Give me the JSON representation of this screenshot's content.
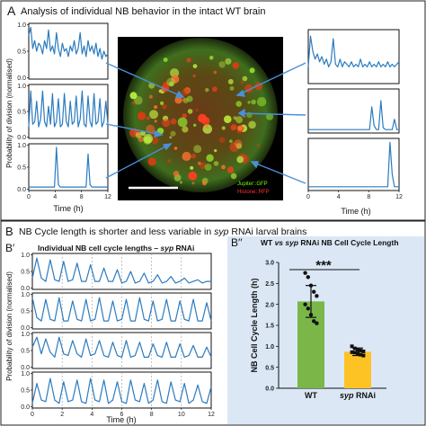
{
  "panel_a": {
    "letter": "A",
    "title": "Analysis of individual NB behavior in the intact WT brain",
    "ylabel": "Probability of division (normalised)",
    "xlabel_left": "Time (h)",
    "xlabel_right": "Time (h)",
    "yticks": [
      "1.0",
      "0.5",
      "0.0"
    ],
    "xticks": [
      "0",
      "4",
      "8",
      "12"
    ],
    "microscopy": {
      "label_jupiter": "Jupiter::GFP",
      "label_histone": "Histone::RFP",
      "jupiter_color": "#7CFC00",
      "histone_color": "#ff3030"
    }
  },
  "panel_b": {
    "letter": "B",
    "title": "NB Cycle length is shorter and less variable in syp RNAi larval brains",
    "title_parts": [
      "NB Cycle length is shorter and less variable in ",
      "syp",
      " RNAi larval brains"
    ]
  },
  "panel_b1": {
    "letter": "B′",
    "title_parts": [
      "Individual NB cell cycle lengths – ",
      "syp",
      " RNAi"
    ],
    "ylabel": "Probability of division (normalised)",
    "xlabel": "Time (h)",
    "yticks": [
      "1.0",
      "0.5",
      "0.0"
    ],
    "xticks": [
      "0",
      "2",
      "4",
      "6",
      "8",
      "10",
      "12"
    ]
  },
  "panel_b2": {
    "letter": "B′′",
    "title_parts": [
      "WT ",
      "vs syp",
      " RNAi NB Cell Cycle Length"
    ],
    "ylabel": "NB Cell Cycle Length (h)",
    "significance": "***",
    "yticks": [
      "0.0",
      "0.5",
      "1.0",
      "1.5",
      "2.0",
      "2.5",
      "3.0"
    ],
    "xlabels": [
      {
        "a": "WT",
        "b": ""
      },
      {
        "a": "syp",
        "b": " RNAi"
      }
    ]
  },
  "chart_data": [
    {
      "type": "line",
      "ylabel": "Probability of division (normalised)",
      "xlabel": "Time (h)",
      "xlim": [
        0,
        12
      ],
      "ylim": [
        0,
        1
      ],
      "series": [
        {
          "x": [
            0,
            0.3,
            0.6,
            0.9,
            1.2,
            1.5,
            1.8,
            2.1,
            2.4,
            2.7,
            3.0,
            3.3,
            3.6,
            3.9,
            4.2,
            4.5,
            4.8,
            5.1,
            5.4,
            5.7,
            6.0,
            6.3,
            6.6,
            6.9,
            7.2,
            7.5,
            7.8,
            8.1,
            8.4,
            8.7,
            9.0,
            9.3,
            9.6,
            9.9,
            10.2,
            10.5,
            10.8,
            11.1,
            11.4,
            11.7,
            12.0
          ],
          "values": [
            0.8,
            0.95,
            0.55,
            0.7,
            0.5,
            0.65,
            0.6,
            0.45,
            0.7,
            0.55,
            0.9,
            0.5,
            0.6,
            0.45,
            0.85,
            0.55,
            0.4,
            0.65,
            0.5,
            0.55,
            0.4,
            0.6,
            0.5,
            0.7,
            0.45,
            0.55,
            0.85,
            0.45,
            0.6,
            0.4,
            0.7,
            0.5,
            0.6,
            0.45,
            0.65,
            0.4,
            0.55,
            0.35,
            0.5,
            0.4,
            0.45
          ]
        },
        {
          "x": [
            0,
            0.3,
            0.6,
            0.9,
            1.2,
            1.5,
            1.8,
            2.1,
            2.4,
            2.7,
            3.0,
            3.3,
            3.6,
            3.9,
            4.2,
            4.5,
            4.8,
            5.1,
            5.4,
            5.7,
            6.0,
            6.3,
            6.6,
            6.9,
            7.2,
            7.5,
            7.8,
            8.1,
            8.4,
            8.7,
            9.0,
            9.3,
            9.6,
            9.9,
            10.2,
            10.5,
            10.8,
            11.1,
            11.4,
            11.7,
            12.0
          ],
          "values": [
            0.2,
            0.9,
            0.25,
            0.3,
            0.7,
            0.2,
            0.35,
            0.9,
            0.3,
            0.2,
            0.6,
            0.25,
            0.85,
            0.2,
            0.3,
            0.75,
            0.2,
            0.25,
            0.85,
            0.3,
            0.2,
            0.7,
            0.25,
            0.3,
            0.8,
            0.2,
            0.35,
            0.9,
            0.25,
            0.2,
            0.8,
            0.3,
            0.2,
            0.85,
            0.25,
            0.3,
            0.75,
            0.2,
            0.3,
            0.7,
            0.25
          ]
        },
        {
          "x": [
            0,
            0.3,
            0.6,
            0.9,
            1.2,
            1.5,
            1.8,
            2.1,
            2.4,
            2.7,
            3.0,
            3.3,
            3.6,
            3.9,
            4.2,
            4.5,
            4.8,
            5.1,
            5.4,
            5.7,
            6.0,
            6.3,
            6.6,
            6.9,
            7.2,
            7.5,
            7.8,
            8.1,
            8.4,
            8.7,
            9.0,
            9.3,
            9.6,
            9.9,
            10.2,
            10.5,
            10.8,
            11.1,
            11.4,
            11.7,
            12.0
          ],
          "values": [
            0.05,
            0.05,
            0.05,
            0.05,
            0.05,
            0.05,
            0.05,
            0.05,
            0.05,
            0.05,
            0.05,
            0.05,
            0.05,
            0.05,
            0.95,
            0.1,
            0.05,
            0.05,
            0.05,
            0.05,
            0.05,
            0.05,
            0.05,
            0.05,
            0.05,
            0.05,
            0.05,
            0.05,
            0.05,
            0.05,
            0.8,
            0.1,
            0.05,
            0.05,
            0.05,
            0.05,
            0.05,
            0.05,
            0.05,
            0.05,
            0.05
          ]
        },
        {
          "x": [
            0,
            0.3,
            0.6,
            0.9,
            1.2,
            1.5,
            1.8,
            2.1,
            2.4,
            2.7,
            3.0,
            3.3,
            3.6,
            3.9,
            4.2,
            4.5,
            4.8,
            5.1,
            5.4,
            5.7,
            6.0,
            6.3,
            6.6,
            6.9,
            7.2,
            7.5,
            7.8,
            8.1,
            8.4,
            8.7,
            9.0,
            9.3,
            9.6,
            9.9,
            10.2,
            10.5,
            10.8,
            11.1,
            11.4,
            11.7,
            12.0
          ],
          "values": [
            0.3,
            0.9,
            0.6,
            0.45,
            0.55,
            0.4,
            0.5,
            0.35,
            0.45,
            0.3,
            0.4,
            0.85,
            0.35,
            0.3,
            0.45,
            0.3,
            0.4,
            0.35,
            0.3,
            0.4,
            0.3,
            0.35,
            0.3,
            0.45,
            0.3,
            0.35,
            0.3,
            0.4,
            0.3,
            0.35,
            0.3,
            0.4,
            0.3,
            0.35,
            0.3,
            0.4,
            0.3,
            0.35,
            0.3,
            0.35,
            0.4
          ]
        },
        {
          "x": [
            0,
            0.3,
            0.6,
            0.9,
            1.2,
            1.5,
            1.8,
            2.1,
            2.4,
            2.7,
            3.0,
            3.3,
            3.6,
            3.9,
            4.2,
            4.5,
            4.8,
            5.1,
            5.4,
            5.7,
            6.0,
            6.3,
            6.6,
            6.9,
            7.2,
            7.5,
            7.8,
            8.1,
            8.4,
            8.7,
            9.0,
            9.3,
            9.6,
            9.9,
            10.2,
            10.5,
            10.8,
            11.1,
            11.4,
            11.7,
            12.0
          ],
          "values": [
            0.05,
            0.05,
            0.05,
            0.05,
            0.05,
            0.05,
            0.05,
            0.05,
            0.05,
            0.05,
            0.05,
            0.05,
            0.05,
            0.05,
            0.05,
            0.05,
            0.05,
            0.05,
            0.05,
            0.05,
            0.05,
            0.05,
            0.05,
            0.05,
            0.05,
            0.05,
            0.05,
            0.05,
            0.6,
            0.15,
            0.05,
            0.05,
            0.75,
            0.1,
            0.05,
            0.05,
            0.05,
            0.05,
            0.3,
            0.05,
            0.05
          ]
        },
        {
          "x": [
            0,
            0.3,
            0.6,
            0.9,
            1.2,
            1.5,
            1.8,
            2.1,
            2.4,
            2.7,
            3.0,
            3.3,
            3.6,
            3.9,
            4.2,
            4.5,
            4.8,
            5.1,
            5.4,
            5.7,
            6.0,
            6.3,
            6.6,
            6.9,
            7.2,
            7.5,
            7.8,
            8.1,
            8.4,
            8.7,
            9.0,
            9.3,
            9.6,
            9.9,
            10.2,
            10.5,
            10.8,
            11.1,
            11.4,
            11.7,
            12.0
          ],
          "values": [
            0.05,
            0.05,
            0.05,
            0.05,
            0.05,
            0.05,
            0.05,
            0.05,
            0.05,
            0.05,
            0.05,
            0.05,
            0.05,
            0.05,
            0.05,
            0.05,
            0.05,
            0.05,
            0.05,
            0.05,
            0.05,
            0.05,
            0.05,
            0.05,
            0.05,
            0.05,
            0.05,
            0.05,
            0.05,
            0.05,
            0.05,
            0.05,
            0.05,
            0.05,
            0.05,
            0.05,
            0.95,
            0.3,
            0.05,
            0.05,
            0.05
          ]
        }
      ]
    },
    {
      "type": "line",
      "ylabel": "Probability of division (normalised)",
      "xlabel": "Time (h)",
      "xlim": [
        0,
        12
      ],
      "ylim": [
        0,
        1
      ],
      "series": [
        {
          "x": [
            0,
            0.3,
            0.6,
            0.9,
            1.2,
            1.5,
            1.8,
            2.1,
            2.4,
            2.7,
            3.0,
            3.3,
            3.6,
            3.9,
            4.2,
            4.5,
            4.8,
            5.1,
            5.4,
            5.7,
            6.0,
            6.3,
            6.6,
            6.9,
            7.2,
            7.5,
            7.8,
            8.1,
            8.4,
            8.7,
            9.0,
            9.3,
            9.6,
            9.9,
            10.2,
            10.5,
            10.8,
            11.1,
            11.4,
            11.7,
            12.0
          ],
          "values": [
            0.3,
            0.9,
            0.3,
            0.2,
            0.85,
            0.25,
            0.2,
            0.8,
            0.2,
            0.25,
            0.75,
            0.2,
            0.2,
            0.7,
            0.2,
            0.2,
            0.6,
            0.2,
            0.2,
            0.55,
            0.15,
            0.2,
            0.5,
            0.15,
            0.2,
            0.45,
            0.15,
            0.2,
            0.4,
            0.15,
            0.2,
            0.35,
            0.15,
            0.2,
            0.3,
            0.15,
            0.2,
            0.25,
            0.15,
            0.2,
            0.2
          ]
        },
        {
          "x": [
            0,
            0.3,
            0.6,
            0.9,
            1.2,
            1.5,
            1.8,
            2.1,
            2.4,
            2.7,
            3.0,
            3.3,
            3.6,
            3.9,
            4.2,
            4.5,
            4.8,
            5.1,
            5.4,
            5.7,
            6.0,
            6.3,
            6.6,
            6.9,
            7.2,
            7.5,
            7.8,
            8.1,
            8.4,
            8.7,
            9.0,
            9.3,
            9.6,
            9.9,
            10.2,
            10.5,
            10.8,
            11.1,
            11.4,
            11.7,
            12.0
          ],
          "values": [
            0.9,
            0.3,
            0.2,
            0.85,
            0.25,
            0.2,
            0.9,
            0.2,
            0.2,
            0.8,
            0.25,
            0.2,
            0.85,
            0.2,
            0.25,
            0.9,
            0.2,
            0.2,
            0.8,
            0.2,
            0.25,
            0.85,
            0.2,
            0.2,
            0.9,
            0.25,
            0.2,
            0.8,
            0.2,
            0.25,
            0.85,
            0.2,
            0.2,
            0.8,
            0.25,
            0.2,
            0.85,
            0.2,
            0.2,
            0.75,
            0.2
          ]
        },
        {
          "x": [
            0,
            0.3,
            0.6,
            0.9,
            1.2,
            1.5,
            1.8,
            2.1,
            2.4,
            2.7,
            3.0,
            3.3,
            3.6,
            3.9,
            4.2,
            4.5,
            4.8,
            5.1,
            5.4,
            5.7,
            6.0,
            6.3,
            6.6,
            6.9,
            7.2,
            7.5,
            7.8,
            8.1,
            8.4,
            8.7,
            9.0,
            9.3,
            9.6,
            9.9,
            10.2,
            10.5,
            10.8,
            11.1,
            11.4,
            11.7,
            12.0
          ],
          "values": [
            0.6,
            0.9,
            0.4,
            0.85,
            0.45,
            0.3,
            0.9,
            0.4,
            0.35,
            0.8,
            0.4,
            0.3,
            0.85,
            0.35,
            0.4,
            0.8,
            0.35,
            0.3,
            0.75,
            0.35,
            0.3,
            0.8,
            0.3,
            0.35,
            0.75,
            0.3,
            0.3,
            0.7,
            0.35,
            0.3,
            0.75,
            0.3,
            0.3,
            0.7,
            0.3,
            0.35,
            0.65,
            0.3,
            0.3,
            0.6,
            0.3
          ]
        },
        {
          "x": [
            0,
            0.3,
            0.6,
            0.9,
            1.2,
            1.5,
            1.8,
            2.1,
            2.4,
            2.7,
            3.0,
            3.3,
            3.6,
            3.9,
            4.2,
            4.5,
            4.8,
            5.1,
            5.4,
            5.7,
            6.0,
            6.3,
            6.6,
            6.9,
            7.2,
            7.5,
            7.8,
            8.1,
            8.4,
            8.7,
            9.0,
            9.3,
            9.6,
            9.9,
            10.2,
            10.5,
            10.8,
            11.1,
            11.4,
            11.7,
            12.0
          ],
          "values": [
            0.1,
            0.7,
            0.2,
            0.15,
            0.85,
            0.2,
            0.1,
            0.75,
            0.15,
            0.2,
            0.8,
            0.15,
            0.1,
            0.85,
            0.2,
            0.15,
            0.8,
            0.1,
            0.2,
            0.75,
            0.15,
            0.1,
            0.8,
            0.2,
            0.15,
            0.7,
            0.1,
            0.2,
            0.8,
            0.15,
            0.1,
            0.75,
            0.2,
            0.15,
            0.7,
            0.1,
            0.2,
            0.65,
            0.15,
            0.1,
            0.6
          ]
        }
      ]
    },
    {
      "type": "bar",
      "ylabel": "NB Cell Cycle Length (h)",
      "categories": [
        "WT",
        "syp RNAi"
      ],
      "values": [
        2.07,
        0.87
      ],
      "errors": [
        0.38,
        0.09
      ],
      "colors": [
        "#7ab648",
        "#fdc325"
      ],
      "points": [
        [
          2.75,
          2.65,
          2.45,
          2.3,
          2.2,
          2.0,
          1.9,
          1.75,
          1.6,
          1.55
        ],
        [
          1.0,
          0.95,
          0.92,
          0.9,
          0.88,
          0.86,
          0.85,
          0.83,
          0.8,
          0.78
        ]
      ],
      "ylim": [
        0,
        3
      ]
    }
  ]
}
